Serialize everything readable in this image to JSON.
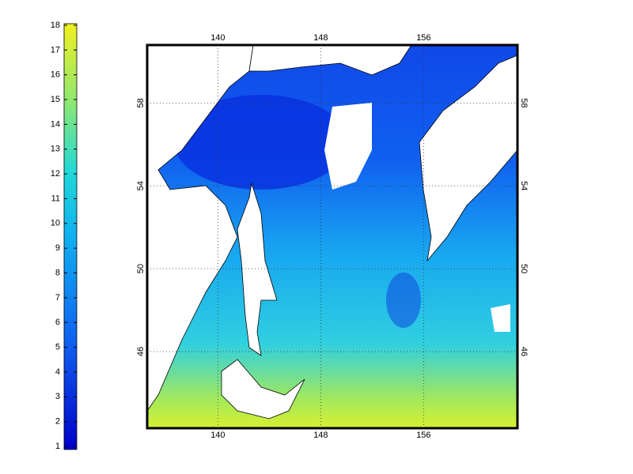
{
  "colorbar": {
    "range": [
      1,
      18
    ],
    "ticks": [
      1,
      2,
      3,
      4,
      5,
      6,
      7,
      8,
      9,
      10,
      11,
      12,
      13,
      14,
      15,
      16,
      17,
      18
    ]
  },
  "map": {
    "lonlim": [
      134.5,
      163.3
    ],
    "latlim": [
      42.3,
      60.8
    ],
    "lon_ticks": [
      140,
      148,
      156
    ],
    "lat_ticks": [
      46,
      50,
      54,
      58
    ],
    "grid": true
  }
}
